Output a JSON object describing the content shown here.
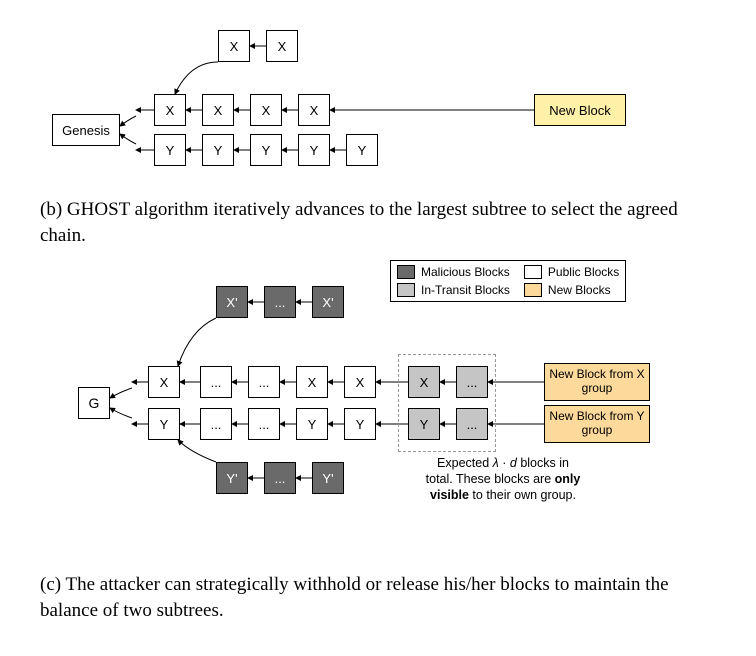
{
  "colors": {
    "block_border": "#000000",
    "background": "#ffffff",
    "dark_fill": "#6a6a6a",
    "light_fill": "#c5c5c5",
    "yellow_fill": "#fff2a8",
    "orange_fill": "#fdd99b",
    "dash_color": "#9a9a9a",
    "arrow_color": "#000000"
  },
  "figure_b": {
    "genesis": "Genesis",
    "new_block": "New Block",
    "top_row": [
      "X",
      "X"
    ],
    "x_row": [
      "X",
      "X",
      "X",
      "X"
    ],
    "y_row": [
      "Y",
      "Y",
      "Y",
      "Y",
      "Y"
    ],
    "caption": "(b) GHOST algorithm iteratively advances to the largest subtree to select the agreed chain."
  },
  "figure_c": {
    "g": "G",
    "xprime_row": [
      "X'",
      "...",
      "X'"
    ],
    "x_row": [
      "X",
      "...",
      "...",
      "X"
    ],
    "y_row": [
      "Y",
      "...",
      "...",
      "Y"
    ],
    "yprime_row": [
      "Y'",
      "...",
      "Y'"
    ],
    "intransit_x": [
      "X",
      "..."
    ],
    "intransit_y": [
      "Y",
      "..."
    ],
    "new_x": "New Block from X group",
    "new_y": "New Block from Y group",
    "expected_note_l1": "Expected λ · d  blocks in",
    "expected_note_l2": "total. These blocks are only",
    "expected_note_l3": "visible to their own group.",
    "legend": {
      "malicious": "Malicious Blocks",
      "public": "Public Blocks",
      "intransit": "In-Transit Blocks",
      "newblocks": "New Blocks"
    },
    "caption": "(c) The attacker can strategically withhold or release his/her blocks to maintain the balance of two subtrees."
  }
}
